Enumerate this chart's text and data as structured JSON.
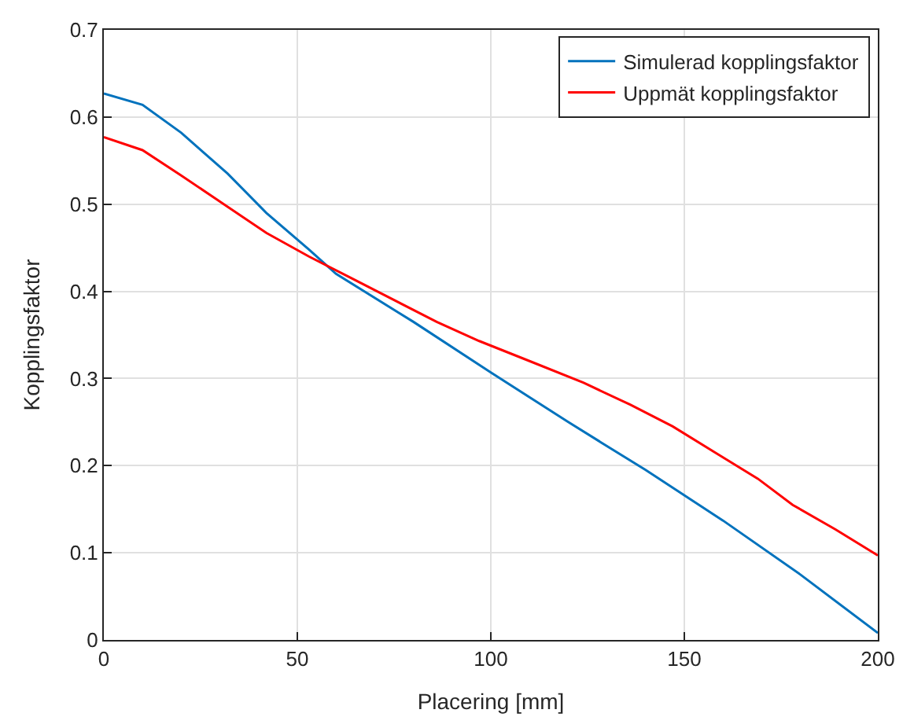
{
  "chart_data": {
    "type": "line",
    "xlabel": "Placering [mm]",
    "ylabel": "Kopplingsfaktor",
    "xlim": [
      0,
      200
    ],
    "xticks": [
      0,
      50,
      100,
      150,
      200
    ],
    "ylim": [
      0,
      0.7
    ],
    "yticks": [
      0,
      0.1,
      0.2,
      0.3,
      0.4,
      0.5,
      0.6,
      0.7
    ],
    "grid": true,
    "legend": "top right",
    "marker": "none",
    "line_style": "solid",
    "series": [
      {
        "name": "Simulerad kopplingsfaktor",
        "color": "#0072bd",
        "x": [
          0,
          10,
          20,
          32,
          42,
          53,
          60,
          80,
          100,
          120,
          140,
          160,
          180,
          200
        ],
        "values": [
          0.627,
          0.614,
          0.582,
          0.535,
          0.49,
          0.448,
          0.42,
          0.365,
          0.307,
          0.25,
          0.195,
          0.137,
          0.075,
          0.008
        ]
      },
      {
        "name": "Uppmät kopplingsfaktor",
        "color": "#ff0000",
        "x": [
          0,
          10,
          20,
          31,
          42,
          53,
          64,
          75,
          86,
          97,
          110,
          124,
          136,
          147,
          158,
          169,
          178,
          189,
          200
        ],
        "values": [
          0.577,
          0.562,
          0.533,
          0.5,
          0.467,
          0.44,
          0.415,
          0.39,
          0.365,
          0.343,
          0.32,
          0.295,
          0.27,
          0.245,
          0.215,
          0.185,
          0.155,
          0.127,
          0.097
        ]
      }
    ]
  }
}
